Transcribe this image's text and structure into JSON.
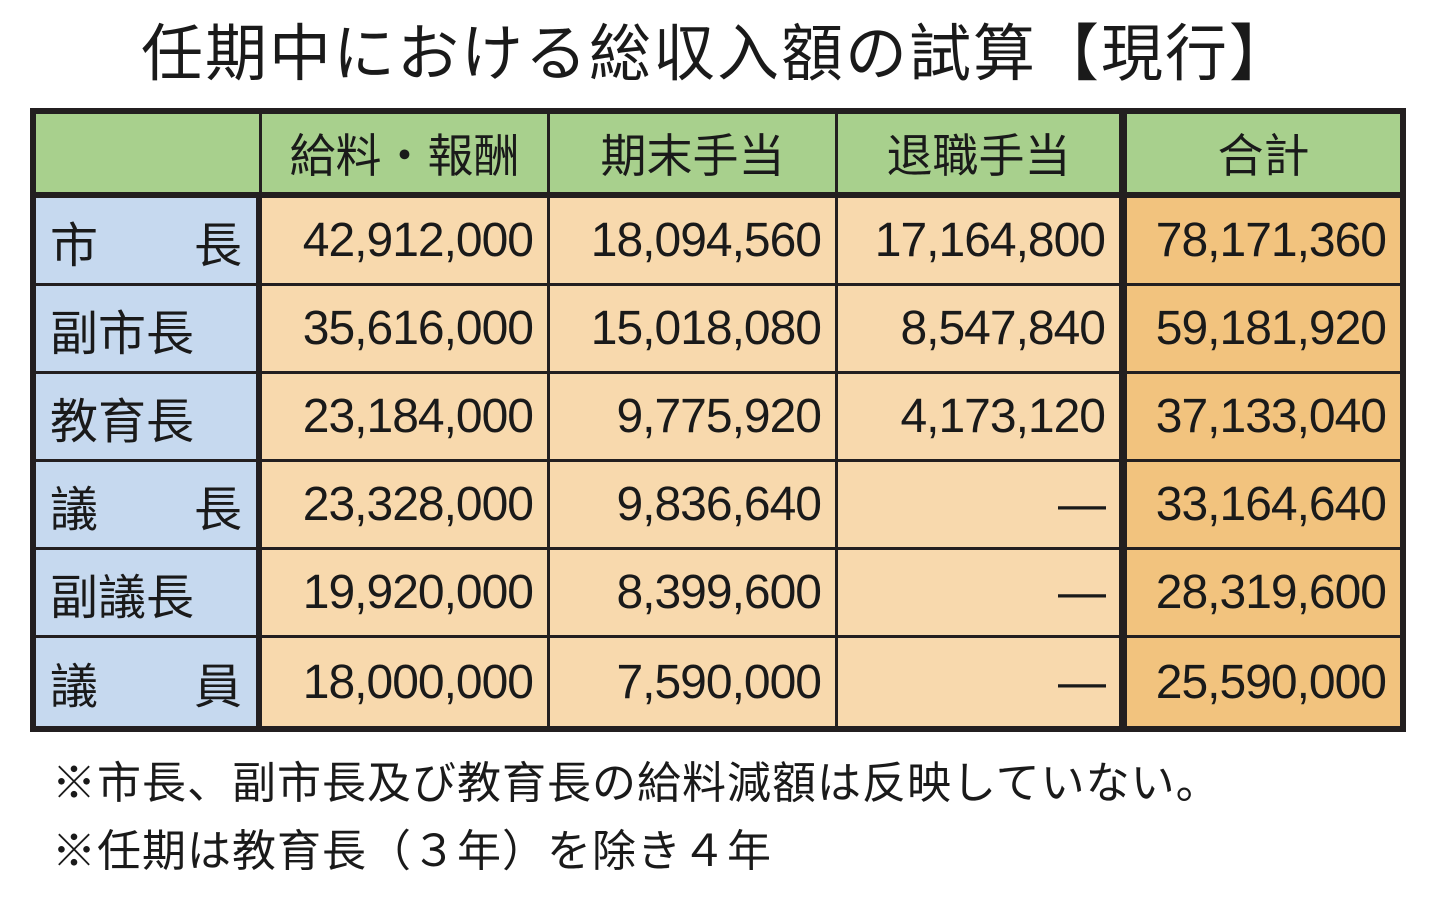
{
  "title": "任期中における総収入額の試算【現行】",
  "table": {
    "headers": [
      "",
      "給料・報酬",
      "期末手当",
      "退職手当",
      "合計"
    ],
    "rows": [
      {
        "label_parts": [
          "市",
          "長"
        ],
        "label": "市 長",
        "salary": "42,912,000",
        "bonus": "18,094,560",
        "retirement": "17,164,800",
        "total": "78,171,360"
      },
      {
        "label_parts": [
          "副市長"
        ],
        "label": "副市長",
        "salary": "35,616,000",
        "bonus": "15,018,080",
        "retirement": "8,547,840",
        "total": "59,181,920"
      },
      {
        "label_parts": [
          "教育長"
        ],
        "label": "教育長",
        "salary": "23,184,000",
        "bonus": "9,775,920",
        "retirement": "4,173,120",
        "total": "37,133,040"
      },
      {
        "label_parts": [
          "議",
          "長"
        ],
        "label": "議 長",
        "salary": "23,328,000",
        "bonus": "9,836,640",
        "retirement": "—",
        "total": "33,164,640"
      },
      {
        "label_parts": [
          "副議長"
        ],
        "label": "副議長",
        "salary": "19,920,000",
        "bonus": "8,399,600",
        "retirement": "—",
        "total": "28,319,600"
      },
      {
        "label_parts": [
          "議",
          "員"
        ],
        "label": "議 員",
        "salary": "18,000,000",
        "bonus": "7,590,000",
        "retirement": "—",
        "total": "25,590,000"
      }
    ]
  },
  "notes": [
    "※市長、副市長及び教育長の給料減額は反映していない。",
    "※任期は教育長（３年）を除き４年"
  ],
  "colors": {
    "header_bg": "#a8d08d",
    "rowhead_bg": "#c6d9ef",
    "cell_bg": "#f8d9ad",
    "total_bg": "#f2c37e",
    "border": "#231f20"
  }
}
